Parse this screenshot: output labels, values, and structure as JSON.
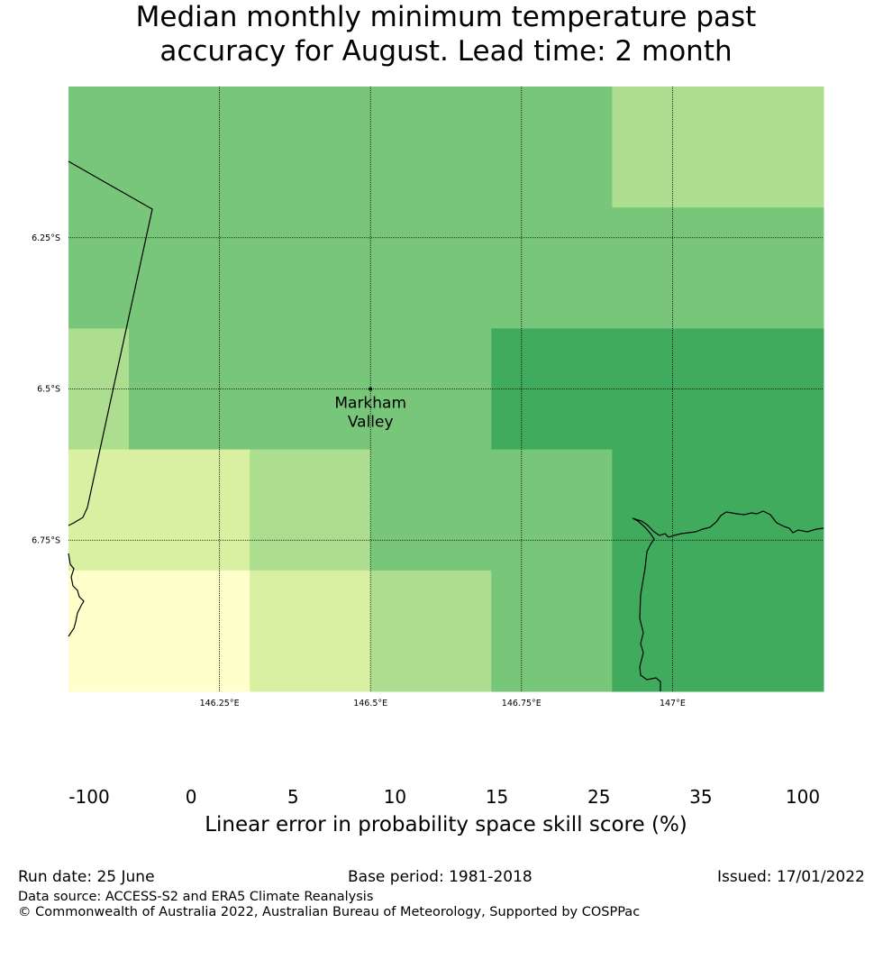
{
  "title_line1": "Median monthly minimum temperature past",
  "title_line2": "accuracy for August. Lead time: 2 month",
  "map": {
    "lon_range": [
      146.0,
      147.25
    ],
    "lat_range": [
      -6.0,
      -7.0
    ],
    "lon_ticks": [
      "146.25°E",
      "146.5°E",
      "146.75°E",
      "147°E"
    ],
    "lat_ticks": [
      "6.25°S",
      "6.5°S",
      "6.75°S"
    ],
    "grid_lines": true,
    "location": {
      "name_line1": "Markham",
      "name_line2": "Valley",
      "lon": 146.5,
      "lat": -6.5
    },
    "cells": [
      {
        "lon0": 146.0,
        "lon1": 146.5,
        "lat0": -6.0,
        "lat1": -6.2,
        "bin": 4
      },
      {
        "lon0": 146.5,
        "lon1": 146.7,
        "lat0": -6.0,
        "lat1": -6.2,
        "bin": 4
      },
      {
        "lon0": 146.7,
        "lon1": 146.9,
        "lat0": -6.0,
        "lat1": -6.2,
        "bin": 4
      },
      {
        "lon0": 146.9,
        "lon1": 147.25,
        "lat0": -6.0,
        "lat1": -6.2,
        "bin": 3
      },
      {
        "lon0": 146.0,
        "lon1": 146.9,
        "lat0": -6.2,
        "lat1": -6.4,
        "bin": 4
      },
      {
        "lon0": 146.9,
        "lon1": 147.25,
        "lat0": -6.2,
        "lat1": -6.4,
        "bin": 4
      },
      {
        "lon0": 146.0,
        "lon1": 146.1,
        "lat0": -6.4,
        "lat1": -6.6,
        "bin": 3
      },
      {
        "lon0": 146.1,
        "lon1": 146.7,
        "lat0": -6.4,
        "lat1": -6.6,
        "bin": 4
      },
      {
        "lon0": 146.7,
        "lon1": 147.25,
        "lat0": -6.4,
        "lat1": -6.6,
        "bin": 5
      },
      {
        "lon0": 146.0,
        "lon1": 146.3,
        "lat0": -6.6,
        "lat1": -6.8,
        "bin": 2
      },
      {
        "lon0": 146.3,
        "lon1": 146.5,
        "lat0": -6.6,
        "lat1": -6.8,
        "bin": 3
      },
      {
        "lon0": 146.5,
        "lon1": 146.9,
        "lat0": -6.6,
        "lat1": -6.8,
        "bin": 4
      },
      {
        "lon0": 146.9,
        "lon1": 147.25,
        "lat0": -6.6,
        "lat1": -6.8,
        "bin": 5
      },
      {
        "lon0": 146.0,
        "lon1": 146.3,
        "lat0": -6.8,
        "lat1": -7.0,
        "bin": 1
      },
      {
        "lon0": 146.3,
        "lon1": 146.5,
        "lat0": -6.8,
        "lat1": -7.0,
        "bin": 2
      },
      {
        "lon0": 146.5,
        "lon1": 146.7,
        "lat0": -6.8,
        "lat1": -7.0,
        "bin": 3
      },
      {
        "lon0": 146.7,
        "lon1": 146.9,
        "lat0": -6.8,
        "lat1": -7.0,
        "bin": 4
      },
      {
        "lon0": 146.9,
        "lon1": 147.25,
        "lat0": -6.8,
        "lat1": -7.0,
        "bin": 5
      }
    ]
  },
  "colorbar": {
    "labels": [
      "-100",
      "0",
      "5",
      "10",
      "15",
      "25",
      "35",
      "100"
    ],
    "colors": [
      "#ffffff",
      "#ffffcc",
      "#d9f0a3",
      "#addd8e",
      "#78c679",
      "#41ab5d",
      "#238443"
    ],
    "title": "Linear error in probability space skill score (%)"
  },
  "footer": {
    "run_date": "Run date: 25 June",
    "base_period": "Base period: 1981-2018",
    "issued": "Issued: 17/01/2022",
    "data_source": "Data source: ACCESS-S2 and ERA5 Climate Reanalysis",
    "copyright": "© Commonwealth of Australia 2022, Australian Bureau of Meteorology, Supported by COSPPac"
  }
}
